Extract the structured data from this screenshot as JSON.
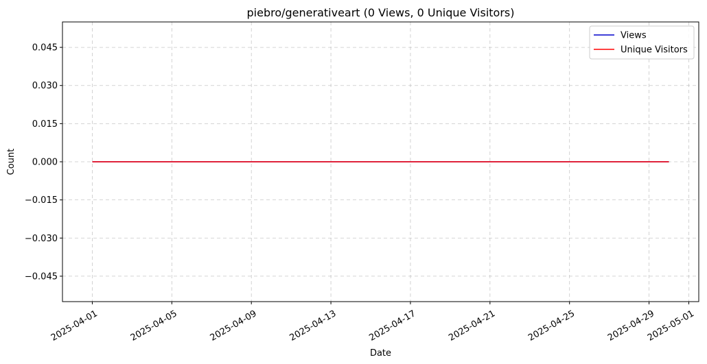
{
  "chart_data": {
    "type": "line",
    "title": "piebro/generativeart (0 Views, 0 Unique Visitors)",
    "xlabel": "Date",
    "ylabel": "Count",
    "x": [
      "2025-04-01",
      "2025-04-02",
      "2025-04-03",
      "2025-04-04",
      "2025-04-05",
      "2025-04-06",
      "2025-04-07",
      "2025-04-08",
      "2025-04-09",
      "2025-04-10",
      "2025-04-11",
      "2025-04-12",
      "2025-04-13",
      "2025-04-14",
      "2025-04-15",
      "2025-04-16",
      "2025-04-17",
      "2025-04-18",
      "2025-04-19",
      "2025-04-20",
      "2025-04-21",
      "2025-04-22",
      "2025-04-23",
      "2025-04-24",
      "2025-04-25",
      "2025-04-26",
      "2025-04-27",
      "2025-04-28",
      "2025-04-29",
      "2025-04-30"
    ],
    "series": [
      {
        "name": "Views",
        "color": "#0000cc",
        "values": [
          0,
          0,
          0,
          0,
          0,
          0,
          0,
          0,
          0,
          0,
          0,
          0,
          0,
          0,
          0,
          0,
          0,
          0,
          0,
          0,
          0,
          0,
          0,
          0,
          0,
          0,
          0,
          0,
          0,
          0
        ]
      },
      {
        "name": "Unique Visitors",
        "color": "#ff0000",
        "values": [
          0,
          0,
          0,
          0,
          0,
          0,
          0,
          0,
          0,
          0,
          0,
          0,
          0,
          0,
          0,
          0,
          0,
          0,
          0,
          0,
          0,
          0,
          0,
          0,
          0,
          0,
          0,
          0,
          0,
          0
        ]
      }
    ],
    "xlim": [
      "2025-03-30T12:00",
      "2025-05-01T12:00"
    ],
    "ylim": [
      -0.055,
      0.055
    ],
    "xticks": [
      "2025-04-01",
      "2025-04-05",
      "2025-04-09",
      "2025-04-13",
      "2025-04-17",
      "2025-04-21",
      "2025-04-25",
      "2025-04-29",
      "2025-05-01"
    ],
    "yticks": [
      0.045,
      0.03,
      0.015,
      0.0,
      -0.015,
      -0.03,
      -0.045
    ],
    "ytick_labels": [
      "0.045",
      "0.030",
      "0.015",
      "0.000",
      "−0.015",
      "−0.030",
      "−0.045"
    ],
    "grid": true,
    "legend_position": "top-right"
  }
}
